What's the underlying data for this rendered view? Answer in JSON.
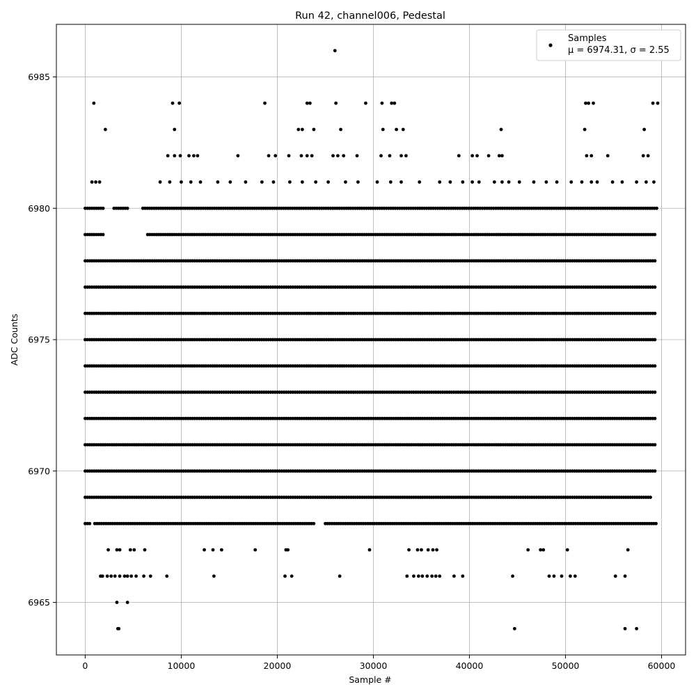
{
  "chart_data": {
    "type": "scatter",
    "title": "Run 42, channel006, Pedestal",
    "xlabel": "Sample #",
    "ylabel": "ADC Counts",
    "xlim": [
      -3000,
      62500
    ],
    "ylim": [
      6963,
      6987
    ],
    "grid": true,
    "x_ticks": [
      0,
      10000,
      20000,
      30000,
      40000,
      50000,
      60000
    ],
    "x_tick_labels": [
      "0",
      "10000",
      "20000",
      "30000",
      "40000",
      "50000",
      "60000"
    ],
    "y_ticks": [
      6965,
      6970,
      6975,
      6980,
      6985
    ],
    "y_tick_labels": [
      "6965",
      "6970",
      "6975",
      "6980",
      "6985"
    ],
    "legend": {
      "position": "top-right",
      "entries": [
        {
          "label": "Samples",
          "stats": "μ = 6974.31, σ = 2.55"
        }
      ]
    },
    "marker_color": "#000000",
    "series": [
      {
        "name": "Samples",
        "dense_levels": [
          {
            "y": 6980,
            "ranges": [
              [
                0,
                2000
              ],
              [
                3000,
                4500
              ],
              [
                6000,
                59500
              ]
            ]
          },
          {
            "y": 6979,
            "ranges": [
              [
                0,
                2000
              ],
              [
                6500,
                59500
              ]
            ]
          },
          {
            "y": 6978,
            "ranges": [
              [
                0,
                59500
              ]
            ]
          },
          {
            "y": 6977,
            "ranges": [
              [
                0,
                59500
              ]
            ]
          },
          {
            "y": 6976,
            "ranges": [
              [
                0,
                59500
              ]
            ]
          },
          {
            "y": 6975,
            "ranges": [
              [
                0,
                59500
              ]
            ]
          },
          {
            "y": 6974,
            "ranges": [
              [
                0,
                59500
              ]
            ]
          },
          {
            "y": 6973,
            "ranges": [
              [
                0,
                59500
              ]
            ]
          },
          {
            "y": 6972,
            "ranges": [
              [
                0,
                59500
              ]
            ]
          },
          {
            "y": 6971,
            "ranges": [
              [
                0,
                59500
              ]
            ]
          },
          {
            "y": 6970,
            "ranges": [
              [
                0,
                59500
              ]
            ]
          },
          {
            "y": 6969,
            "ranges": [
              [
                0,
                59000
              ]
            ]
          },
          {
            "y": 6968,
            "ranges": [
              [
                0,
                500
              ],
              [
                1000,
                24000
              ],
              [
                25000,
                59500
              ]
            ]
          }
        ],
        "points": [
          [
            3500,
            6964
          ],
          [
            3400,
            6964
          ],
          [
            44700,
            6964
          ],
          [
            56200,
            6964
          ],
          [
            57400,
            6964
          ],
          [
            3300,
            6965
          ],
          [
            4400,
            6965
          ],
          [
            1600,
            6966
          ],
          [
            1800,
            6966
          ],
          [
            2300,
            6966
          ],
          [
            2700,
            6966
          ],
          [
            3100,
            6966
          ],
          [
            3600,
            6966
          ],
          [
            4100,
            6966
          ],
          [
            4400,
            6966
          ],
          [
            4800,
            6966
          ],
          [
            5300,
            6966
          ],
          [
            6100,
            6966
          ],
          [
            6800,
            6966
          ],
          [
            8500,
            6966
          ],
          [
            13400,
            6966
          ],
          [
            20800,
            6966
          ],
          [
            21500,
            6966
          ],
          [
            26500,
            6966
          ],
          [
            33500,
            6966
          ],
          [
            34200,
            6966
          ],
          [
            34700,
            6966
          ],
          [
            35100,
            6966
          ],
          [
            35600,
            6966
          ],
          [
            36100,
            6966
          ],
          [
            36500,
            6966
          ],
          [
            36900,
            6966
          ],
          [
            38400,
            6966
          ],
          [
            39300,
            6966
          ],
          [
            44500,
            6966
          ],
          [
            48300,
            6966
          ],
          [
            48800,
            6966
          ],
          [
            49600,
            6966
          ],
          [
            50500,
            6966
          ],
          [
            51000,
            6966
          ],
          [
            55200,
            6966
          ],
          [
            56200,
            6966
          ],
          [
            2400,
            6967
          ],
          [
            3300,
            6967
          ],
          [
            3600,
            6967
          ],
          [
            4700,
            6967
          ],
          [
            5100,
            6967
          ],
          [
            6200,
            6967
          ],
          [
            12400,
            6967
          ],
          [
            13300,
            6967
          ],
          [
            14200,
            6967
          ],
          [
            17700,
            6967
          ],
          [
            20900,
            6967
          ],
          [
            21100,
            6967
          ],
          [
            29600,
            6967
          ],
          [
            33700,
            6967
          ],
          [
            34600,
            6967
          ],
          [
            35000,
            6967
          ],
          [
            35700,
            6967
          ],
          [
            36200,
            6967
          ],
          [
            36600,
            6967
          ],
          [
            46100,
            6967
          ],
          [
            47400,
            6967
          ],
          [
            47700,
            6967
          ],
          [
            50200,
            6967
          ],
          [
            56500,
            6967
          ],
          [
            700,
            6981
          ],
          [
            1100,
            6981
          ],
          [
            1500,
            6981
          ],
          [
            7800,
            6981
          ],
          [
            8800,
            6981
          ],
          [
            10000,
            6981
          ],
          [
            11000,
            6981
          ],
          [
            12000,
            6981
          ],
          [
            13800,
            6981
          ],
          [
            15100,
            6981
          ],
          [
            16700,
            6981
          ],
          [
            18400,
            6981
          ],
          [
            19600,
            6981
          ],
          [
            21300,
            6981
          ],
          [
            22600,
            6981
          ],
          [
            24000,
            6981
          ],
          [
            25300,
            6981
          ],
          [
            27100,
            6981
          ],
          [
            28400,
            6981
          ],
          [
            30400,
            6981
          ],
          [
            31800,
            6981
          ],
          [
            32900,
            6981
          ],
          [
            34800,
            6981
          ],
          [
            36900,
            6981
          ],
          [
            38000,
            6981
          ],
          [
            39300,
            6981
          ],
          [
            40300,
            6981
          ],
          [
            41000,
            6981
          ],
          [
            42600,
            6981
          ],
          [
            43400,
            6981
          ],
          [
            44100,
            6981
          ],
          [
            45200,
            6981
          ],
          [
            46700,
            6981
          ],
          [
            48000,
            6981
          ],
          [
            49100,
            6981
          ],
          [
            50600,
            6981
          ],
          [
            51700,
            6981
          ],
          [
            52700,
            6981
          ],
          [
            53300,
            6981
          ],
          [
            54900,
            6981
          ],
          [
            55900,
            6981
          ],
          [
            57400,
            6981
          ],
          [
            58400,
            6981
          ],
          [
            59200,
            6981
          ],
          [
            8600,
            6982
          ],
          [
            9300,
            6982
          ],
          [
            9900,
            6982
          ],
          [
            10800,
            6982
          ],
          [
            11300,
            6982
          ],
          [
            11700,
            6982
          ],
          [
            15900,
            6982
          ],
          [
            19100,
            6982
          ],
          [
            19800,
            6982
          ],
          [
            21200,
            6982
          ],
          [
            22500,
            6982
          ],
          [
            23100,
            6982
          ],
          [
            23600,
            6982
          ],
          [
            25800,
            6982
          ],
          [
            26300,
            6982
          ],
          [
            26900,
            6982
          ],
          [
            28300,
            6982
          ],
          [
            30800,
            6982
          ],
          [
            31700,
            6982
          ],
          [
            32900,
            6982
          ],
          [
            33400,
            6982
          ],
          [
            38900,
            6982
          ],
          [
            40300,
            6982
          ],
          [
            40800,
            6982
          ],
          [
            42000,
            6982
          ],
          [
            43100,
            6982
          ],
          [
            43400,
            6982
          ],
          [
            52200,
            6982
          ],
          [
            52700,
            6982
          ],
          [
            54400,
            6982
          ],
          [
            58100,
            6982
          ],
          [
            58600,
            6982
          ],
          [
            2100,
            6983
          ],
          [
            9300,
            6983
          ],
          [
            22200,
            6983
          ],
          [
            22600,
            6983
          ],
          [
            23800,
            6983
          ],
          [
            26600,
            6983
          ],
          [
            31000,
            6983
          ],
          [
            32400,
            6983
          ],
          [
            33100,
            6983
          ],
          [
            43300,
            6983
          ],
          [
            52000,
            6983
          ],
          [
            58200,
            6983
          ],
          [
            900,
            6984
          ],
          [
            9100,
            6984
          ],
          [
            9800,
            6984
          ],
          [
            18700,
            6984
          ],
          [
            23100,
            6984
          ],
          [
            23400,
            6984
          ],
          [
            26100,
            6984
          ],
          [
            29200,
            6984
          ],
          [
            30900,
            6984
          ],
          [
            31900,
            6984
          ],
          [
            32200,
            6984
          ],
          [
            52100,
            6984
          ],
          [
            52400,
            6984
          ],
          [
            52900,
            6984
          ],
          [
            59100,
            6984
          ],
          [
            59600,
            6984
          ],
          [
            26000,
            6986
          ]
        ]
      }
    ]
  }
}
